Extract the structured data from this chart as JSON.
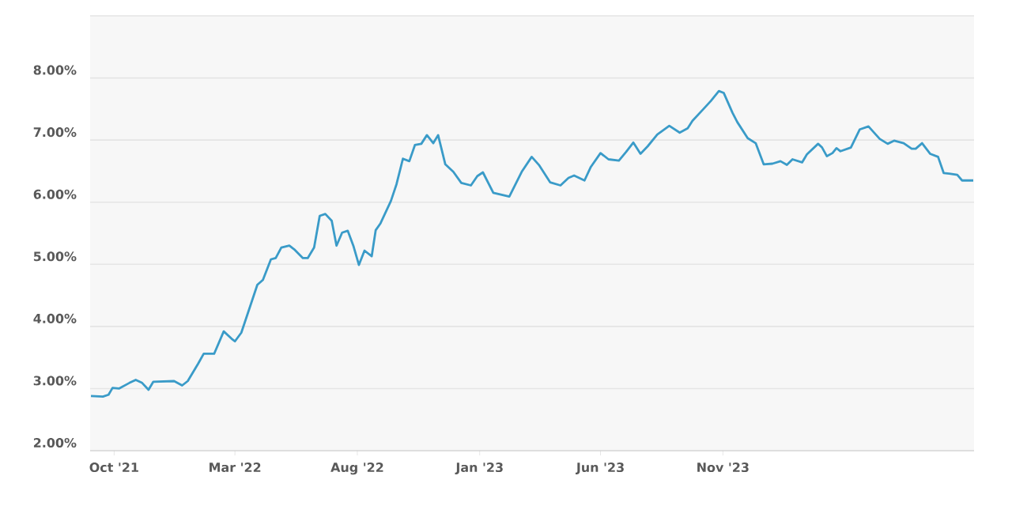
{
  "chart_data": {
    "type": "line",
    "x": [
      "2021-09-02",
      "2021-09-17",
      "2021-09-24",
      "2021-09-29",
      "2021-10-07",
      "2021-10-20",
      "2021-10-28",
      "2021-11-05",
      "2021-11-13",
      "2021-11-19",
      "2021-12-15",
      "2021-12-25",
      "2022-01-01",
      "2022-01-14",
      "2022-01-21",
      "2022-02-03",
      "2022-02-15",
      "2022-02-25",
      "2022-03-01",
      "2022-03-09",
      "2022-03-29",
      "2022-04-05",
      "2022-04-15",
      "2022-04-21",
      "2022-04-28",
      "2022-05-08",
      "2022-05-15",
      "2022-05-25",
      "2022-05-31",
      "2022-06-08",
      "2022-06-15",
      "2022-06-22",
      "2022-06-30",
      "2022-07-06",
      "2022-07-13",
      "2022-07-20",
      "2022-07-27",
      "2022-08-03",
      "2022-08-10",
      "2022-08-19",
      "2022-08-24",
      "2022-08-30",
      "2022-09-12",
      "2022-09-19",
      "2022-09-27",
      "2022-10-05",
      "2022-10-12",
      "2022-10-20",
      "2022-10-27",
      "2022-11-04",
      "2022-11-10",
      "2022-11-19",
      "2022-11-29",
      "2022-12-09",
      "2022-12-21",
      "2022-12-29",
      "2023-01-05",
      "2023-01-18",
      "2023-02-07",
      "2023-02-23",
      "2023-03-07",
      "2023-03-16",
      "2023-03-30",
      "2023-04-12",
      "2023-04-22",
      "2023-04-29",
      "2023-05-12",
      "2023-05-20",
      "2023-06-01",
      "2023-06-11",
      "2023-06-24",
      "2023-07-03",
      "2023-07-12",
      "2023-07-21",
      "2023-07-30",
      "2023-08-11",
      "2023-08-26",
      "2023-09-08",
      "2023-09-18",
      "2023-09-24",
      "2023-10-07",
      "2023-10-17",
      "2023-10-27",
      "2023-11-02",
      "2023-11-13",
      "2023-11-19",
      "2023-12-02",
      "2023-12-12",
      "2023-12-22",
      "2024-01-02",
      "2024-01-12",
      "2024-01-20",
      "2024-01-27",
      "2024-02-08",
      "2024-02-14",
      "2024-02-28",
      "2024-03-04",
      "2024-03-10",
      "2024-03-17",
      "2024-03-22",
      "2024-03-27",
      "2024-04-09",
      "2024-04-20",
      "2024-05-01",
      "2024-05-15",
      "2024-05-25",
      "2024-06-02",
      "2024-06-14",
      "2024-06-24",
      "2024-06-29",
      "2024-07-07",
      "2024-07-17",
      "2024-07-27",
      "2024-08-03",
      "2024-08-10",
      "2024-08-20",
      "2024-08-26",
      "2024-09-02",
      "2024-09-09"
    ],
    "values": [
      2.88,
      2.87,
      2.9,
      3.01,
      3.0,
      3.09,
      3.14,
      3.09,
      2.98,
      3.11,
      3.12,
      3.05,
      3.12,
      3.4,
      3.56,
      3.56,
      3.92,
      3.8,
      3.76,
      3.9,
      4.67,
      4.75,
      5.08,
      5.1,
      5.27,
      5.3,
      5.23,
      5.1,
      5.1,
      5.27,
      5.78,
      5.81,
      5.7,
      5.3,
      5.51,
      5.54,
      5.3,
      4.99,
      5.22,
      5.13,
      5.55,
      5.66,
      6.02,
      6.29,
      6.7,
      6.66,
      6.92,
      6.94,
      7.08,
      6.95,
      7.08,
      6.61,
      6.49,
      6.31,
      6.27,
      6.42,
      6.48,
      6.15,
      6.09,
      6.5,
      6.73,
      6.6,
      6.32,
      6.27,
      6.39,
      6.43,
      6.35,
      6.57,
      6.79,
      6.69,
      6.67,
      6.81,
      6.96,
      6.78,
      6.9,
      7.09,
      7.23,
      7.12,
      7.19,
      7.31,
      7.49,
      7.63,
      7.79,
      7.76,
      7.44,
      7.29,
      7.03,
      6.95,
      6.61,
      6.62,
      6.66,
      6.6,
      6.69,
      6.64,
      6.77,
      6.94,
      6.88,
      6.74,
      6.79,
      6.87,
      6.82,
      6.88,
      7.17,
      7.22,
      7.02,
      6.94,
      6.99,
      6.95,
      6.86,
      6.86,
      6.95,
      6.78,
      6.73,
      6.47,
      6.46,
      6.44,
      6.35,
      6.35,
      6.35
    ],
    "color": "#3a9bc8",
    "xlim": [
      "2021-09-01",
      "2024-09-10"
    ],
    "xticks": [
      {
        "value": "2021-10-01",
        "label": "Oct '21"
      },
      {
        "value": "2022-03-01",
        "label": "Mar '22"
      },
      {
        "value": "2022-08-01",
        "label": "Aug '22"
      },
      {
        "value": "2023-01-01",
        "label": "Jan '23"
      },
      {
        "value": "2023-06-01",
        "label": "Jun '23"
      },
      {
        "value": "2023-11-01",
        "label": "Nov '23"
      }
    ],
    "ylim": [
      2,
      9
    ],
    "yticks": [
      {
        "value": 2,
        "label": "2.00%"
      },
      {
        "value": 3,
        "label": "3.00%"
      },
      {
        "value": 4,
        "label": "4.00%"
      },
      {
        "value": 5,
        "label": "5.00%"
      },
      {
        "value": 6,
        "label": "6.00%"
      },
      {
        "value": 7,
        "label": "7.00%"
      },
      {
        "value": 8,
        "label": "8.00%"
      },
      {
        "value": 9,
        "label": null
      }
    ],
    "grid": "y",
    "marker": "none",
    "line_style": "solid"
  }
}
